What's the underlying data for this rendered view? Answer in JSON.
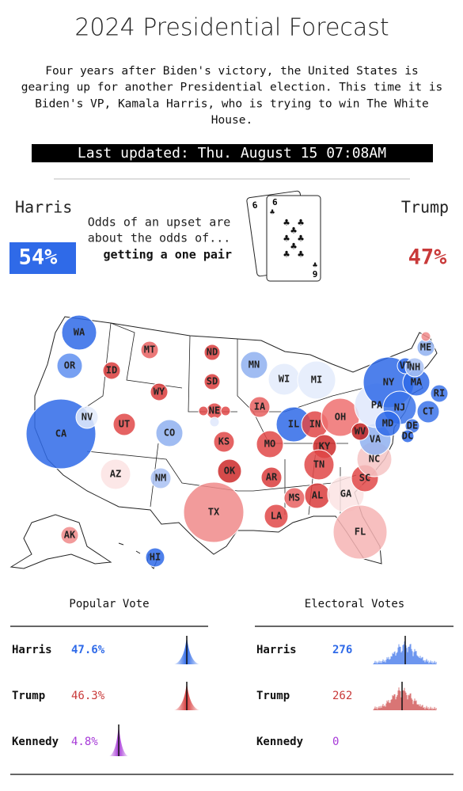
{
  "header": {
    "title": "2024 Presidential Forecast",
    "intro": [
      "Four years after Biden's victory, the United States is",
      "gearing up for another Presidential election. This time it is",
      "Biden's VP, Kamala Harris, who is trying to win The White",
      "House."
    ],
    "updated": "Last updated: Thu. August 15 07:08AM"
  },
  "odds": {
    "left": {
      "name": "Harris",
      "pct": "54%",
      "color": "#2f6ae8"
    },
    "right": {
      "name": "Trump",
      "pct": "47%",
      "color": "#c93a3a"
    },
    "text": [
      "Odds of an upset are",
      "about the odds of..."
    ],
    "hand": "getting a one pair",
    "cards": [
      "6",
      "6",
      "9"
    ]
  },
  "map": {
    "states": [
      {
        "label": "WA",
        "color": "#2f6ae8"
      },
      {
        "label": "OR",
        "color": "#5f8ff0"
      },
      {
        "label": "CA",
        "color": "#2f6ae8"
      },
      {
        "label": "NV",
        "color": "#e3ebfb"
      },
      {
        "label": "ID",
        "color": "#d93c3c"
      },
      {
        "label": "MT",
        "color": "#e86060"
      },
      {
        "label": "WY",
        "color": "#d93c3c"
      },
      {
        "label": "UT",
        "color": "#e04848"
      },
      {
        "label": "CO",
        "color": "#8fb0f0"
      },
      {
        "label": "AZ",
        "color": "#fbe3e3"
      },
      {
        "label": "NM",
        "color": "#a9c1f3"
      },
      {
        "label": "ND",
        "color": "#d93c3c"
      },
      {
        "label": "SD",
        "color": "#d93c3c"
      },
      {
        "label": "NE",
        "color": "#e04848"
      },
      {
        "label": null,
        "color": "#e04848"
      },
      {
        "label": null,
        "color": "#e04848"
      },
      {
        "label": null,
        "color": "#dfe8fb"
      },
      {
        "label": "KS",
        "color": "#e04848"
      },
      {
        "label": "OK",
        "color": "#cc2a2a"
      },
      {
        "label": "TX",
        "color": "#f08a8a"
      },
      {
        "label": "MN",
        "color": "#8fb0f0"
      },
      {
        "label": "IA",
        "color": "#e86060"
      },
      {
        "label": "MO",
        "color": "#e04848"
      },
      {
        "label": "AR",
        "color": "#d93c3c"
      },
      {
        "label": "LA",
        "color": "#e04848"
      },
      {
        "label": "WI",
        "color": "#e3ebfb"
      },
      {
        "label": "MI",
        "color": "#e3ebfb"
      },
      {
        "label": "IL",
        "color": "#2f6ae8"
      },
      {
        "label": "IN",
        "color": "#e04848"
      },
      {
        "label": "OH",
        "color": "#ee7070"
      },
      {
        "label": "KY",
        "color": "#cc2a2a"
      },
      {
        "label": "TN",
        "color": "#e04848"
      },
      {
        "label": "MS",
        "color": "#e86060"
      },
      {
        "label": "AL",
        "color": "#d93c3c"
      },
      {
        "label": "GA",
        "color": "#fbe3e3"
      },
      {
        "label": "FL",
        "color": "#f6b4b4"
      },
      {
        "label": "SC",
        "color": "#e04848"
      },
      {
        "label": "NC",
        "color": "#f6c4c4"
      },
      {
        "label": "VA",
        "color": "#8fb0f0"
      },
      {
        "label": "WV",
        "color": "#c02020"
      },
      {
        "label": "PA",
        "color": "#dfe8fb"
      },
      {
        "label": "NY",
        "color": "#2f6ae8"
      },
      {
        "label": "NJ",
        "color": "#3b73ea"
      },
      {
        "label": "MD",
        "color": "#2f6ae8"
      },
      {
        "label": "DE",
        "color": "#3b73ea"
      },
      {
        "label": "DC",
        "color": "#2f6ae8"
      },
      {
        "label": "CT",
        "color": "#3b73ea"
      },
      {
        "label": "RI",
        "color": "#3b73ea"
      },
      {
        "label": "MA",
        "color": "#2f6ae8"
      },
      {
        "label": "VT",
        "color": "#2f6ae8"
      },
      {
        "label": "NH",
        "color": "#a9c1f3"
      },
      {
        "label": "ME",
        "color": "#8fb0f0"
      },
      {
        "label": null,
        "color": "#f08a8a"
      },
      {
        "label": "AK",
        "color": "#f08a8a"
      },
      {
        "label": "HI",
        "color": "#2f6ae8"
      }
    ]
  },
  "popular_vote": {
    "title": "Popular Vote",
    "rows": [
      {
        "name": "Harris",
        "value": "47.6%",
        "color": "#2f6ae8"
      },
      {
        "name": "Trump",
        "value": "46.3%",
        "color": "#c93a3a"
      },
      {
        "name": "Kennedy",
        "value": "4.8%",
        "color": "#a73ad8"
      }
    ]
  },
  "electoral_votes": {
    "title": "Electoral Votes",
    "rows": [
      {
        "name": "Harris",
        "value": "276",
        "color": "#2f6ae8"
      },
      {
        "name": "Trump",
        "value": "262",
        "color": "#c93a3a"
      },
      {
        "name": "Kennedy",
        "value": "0",
        "color": "#a73ad8"
      }
    ]
  }
}
